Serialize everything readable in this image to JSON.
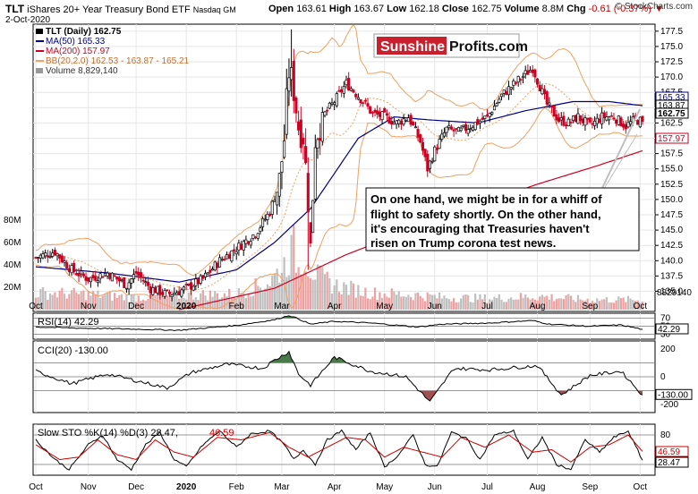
{
  "header": {
    "symbol": "TLT",
    "name": "iShares 20+ Year Treasury Bond ETF",
    "exchange": "Nasdaq GM",
    "date": "2-Oct-2020",
    "open_label": "Open",
    "open": "163.61",
    "high_label": "High",
    "high": "163.67",
    "low_label": "Low",
    "low": "162.18",
    "close_label": "Close",
    "close": "162.75",
    "volume_label": "Volume",
    "volume": "8.8M",
    "chg_label": "Chg",
    "chg": "-0.61 (-0.37%)",
    "copyright": "© StockCharts.com"
  },
  "legend": {
    "price": "TLT (Daily) 162.75",
    "ma50": "MA(50) 165.33",
    "ma200": "MA(200) 157.97",
    "bb": "BB(20,2.0) 162.53 - 163.87 - 165.21",
    "volume": "Volume 8,829,140"
  },
  "logo": {
    "part1": "Sunshine",
    "part2": "Profits.com"
  },
  "annotation": [
    "On one hand, we might be in for a whiff of",
    "flight to safety shortly. On the other hand,",
    "it's encouraging that Treasuries haven't",
    "risen on Trump corona test news."
  ],
  "panels": {
    "rsi": {
      "label": "RSI(14) 42.29",
      "value_tag": "42.29",
      "ticks": [
        "70",
        "50",
        "30"
      ]
    },
    "cci": {
      "label": "CCI(20) -130.00",
      "value_tag": "-130.00",
      "ticks": [
        "200",
        "0",
        "-200"
      ]
    },
    "sto": {
      "label": "Slow STO %K(14) %D(3) 28.47,",
      "label_d": "46.59",
      "value_tags": [
        "46.59",
        "28.47"
      ],
      "ticks": [
        "80",
        "20"
      ]
    }
  },
  "colors": {
    "up": "#000000",
    "down": "#cc0022",
    "ma50": "#000080",
    "ma200": "#cc0022",
    "bb": "#f0a060",
    "volume": "#bfbfbf",
    "volume_red": "#f0a0a0",
    "overbought_fill": "#4a7a4a",
    "oversold_fill": "#a05050",
    "stoch_d": "#cc0000"
  },
  "chart_data": {
    "type": "candlestick",
    "y_axis_price": {
      "ticks": [
        "177.5",
        "175.0",
        "172.5",
        "170.0",
        "167.5",
        "165.0",
        "162.5",
        "160.0",
        "157.5",
        "155.0",
        "152.5",
        "150.0",
        "147.5",
        "145.0",
        "142.5",
        "140.0",
        "137.5",
        "135.0"
      ],
      "range": [
        132,
        178.5
      ]
    },
    "y_axis_volume": {
      "ticks": [
        "80M",
        "60M",
        "40M",
        "20M"
      ]
    },
    "price_tags": [
      {
        "label": "165.33",
        "value": 165.33,
        "color": "#000080",
        "fill": "#ffffff"
      },
      {
        "label": "163.87",
        "value": 163.87,
        "color": "#000000",
        "fill": "#ffffff"
      },
      {
        "label": "162.75",
        "value": 162.75,
        "color": "#000000",
        "fill": "#ffffff"
      },
      {
        "label": "157.97",
        "value": 157.97,
        "color": "#cc0022",
        "fill": "#ffffff"
      }
    ],
    "volume_tag": "8829140",
    "x_labels": [
      "Oct",
      "Nov",
      "Dec",
      "2020",
      "Feb",
      "Mar",
      "Apr",
      "May",
      "Jun",
      "Jul",
      "Aug",
      "Sep",
      "Oct"
    ],
    "x_label_index": [
      0,
      22,
      42,
      63,
      84,
      103,
      125,
      146,
      167,
      189,
      210,
      232,
      253
    ],
    "n_days": 255,
    "close_anchors": [
      [
        0,
        140.5
      ],
      [
        8,
        141.5
      ],
      [
        15,
        138.5
      ],
      [
        22,
        137.0
      ],
      [
        30,
        138.0
      ],
      [
        38,
        136.0
      ],
      [
        42,
        138.0
      ],
      [
        48,
        135.5
      ],
      [
        55,
        134.5
      ],
      [
        60,
        135.0
      ],
      [
        63,
        135.5
      ],
      [
        70,
        137.0
      ],
      [
        77,
        140.0
      ],
      [
        84,
        142.0
      ],
      [
        92,
        144.5
      ],
      [
        98,
        148.0
      ],
      [
        102,
        153.0
      ],
      [
        104,
        160.0
      ],
      [
        106,
        171.0
      ],
      [
        108,
        168.0
      ],
      [
        110,
        162.0
      ],
      [
        112,
        160.5
      ],
      [
        114,
        150.0
      ],
      [
        115,
        142.0
      ],
      [
        117,
        160.0
      ],
      [
        120,
        163.5
      ],
      [
        125,
        166.0
      ],
      [
        130,
        169.0
      ],
      [
        136,
        166.5
      ],
      [
        141,
        164.0
      ],
      [
        146,
        163.5
      ],
      [
        151,
        162.5
      ],
      [
        156,
        163.5
      ],
      [
        161,
        159.5
      ],
      [
        164,
        155.0
      ],
      [
        167,
        158.0
      ],
      [
        172,
        161.5
      ],
      [
        177,
        161.0
      ],
      [
        182,
        162.0
      ],
      [
        189,
        163.5
      ],
      [
        195,
        167.0
      ],
      [
        202,
        169.5
      ],
      [
        208,
        171.5
      ],
      [
        210,
        169.5
      ],
      [
        214,
        165.5
      ],
      [
        219,
        163.0
      ],
      [
        223,
        162.5
      ],
      [
        227,
        163.5
      ],
      [
        232,
        162.0
      ],
      [
        237,
        163.5
      ],
      [
        242,
        163.5
      ],
      [
        247,
        162.0
      ],
      [
        251,
        163.0
      ],
      [
        254,
        162.75
      ]
    ],
    "ma50_anchors": [
      [
        0,
        139.0
      ],
      [
        30,
        138.0
      ],
      [
        60,
        136.5
      ],
      [
        84,
        138.5
      ],
      [
        100,
        143.0
      ],
      [
        115,
        148.5
      ],
      [
        135,
        160.0
      ],
      [
        150,
        163.5
      ],
      [
        165,
        163.0
      ],
      [
        185,
        162.5
      ],
      [
        205,
        164.5
      ],
      [
        225,
        166.0
      ],
      [
        240,
        166.0
      ],
      [
        254,
        165.33
      ]
    ],
    "ma200_anchors": [
      [
        60,
        132.0
      ],
      [
        100,
        135.5
      ],
      [
        130,
        141.0
      ],
      [
        170,
        147.0
      ],
      [
        210,
        152.5
      ],
      [
        235,
        155.5
      ],
      [
        254,
        157.97
      ]
    ],
    "volume_anchors_m": [
      [
        0,
        15
      ],
      [
        20,
        14
      ],
      [
        40,
        11
      ],
      [
        60,
        13
      ],
      [
        84,
        14
      ],
      [
        98,
        25
      ],
      [
        104,
        40
      ],
      [
        108,
        55
      ],
      [
        110,
        36
      ],
      [
        112,
        48
      ],
      [
        115,
        38
      ],
      [
        118,
        30
      ],
      [
        125,
        22
      ],
      [
        140,
        15
      ],
      [
        160,
        13
      ],
      [
        170,
        11
      ],
      [
        190,
        10
      ],
      [
        210,
        12
      ],
      [
        230,
        9
      ],
      [
        254,
        8.8
      ]
    ],
    "rsi_anchors": [
      [
        0,
        48
      ],
      [
        20,
        45
      ],
      [
        40,
        43
      ],
      [
        60,
        40
      ],
      [
        84,
        52
      ],
      [
        100,
        66
      ],
      [
        106,
        77
      ],
      [
        110,
        68
      ],
      [
        115,
        55
      ],
      [
        125,
        62
      ],
      [
        140,
        58
      ],
      [
        160,
        48
      ],
      [
        170,
        55
      ],
      [
        190,
        58
      ],
      [
        208,
        64
      ],
      [
        215,
        55
      ],
      [
        232,
        50
      ],
      [
        245,
        53
      ],
      [
        254,
        42.29
      ]
    ],
    "cci_anchors": [
      [
        0,
        40
      ],
      [
        15,
        -50
      ],
      [
        30,
        20
      ],
      [
        45,
        -40
      ],
      [
        55,
        -80
      ],
      [
        65,
        30
      ],
      [
        80,
        90
      ],
      [
        95,
        60
      ],
      [
        100,
        120
      ],
      [
        106,
        180
      ],
      [
        110,
        20
      ],
      [
        115,
        -60
      ],
      [
        125,
        140
      ],
      [
        140,
        40
      ],
      [
        155,
        0
      ],
      [
        165,
        -180
      ],
      [
        175,
        60
      ],
      [
        190,
        50
      ],
      [
        210,
        80
      ],
      [
        220,
        -130
      ],
      [
        232,
        10
      ],
      [
        245,
        40
      ],
      [
        254,
        -130
      ]
    ],
    "stoch_k_anchors": [
      [
        0,
        70
      ],
      [
        8,
        30
      ],
      [
        14,
        10
      ],
      [
        22,
        60
      ],
      [
        28,
        80
      ],
      [
        34,
        30
      ],
      [
        40,
        10
      ],
      [
        46,
        60
      ],
      [
        52,
        85
      ],
      [
        58,
        30
      ],
      [
        63,
        15
      ],
      [
        70,
        60
      ],
      [
        77,
        88
      ],
      [
        84,
        55
      ],
      [
        90,
        82
      ],
      [
        98,
        88
      ],
      [
        104,
        60
      ],
      [
        108,
        30
      ],
      [
        112,
        50
      ],
      [
        117,
        20
      ],
      [
        122,
        70
      ],
      [
        128,
        88
      ],
      [
        134,
        50
      ],
      [
        140,
        85
      ],
      [
        146,
        15
      ],
      [
        152,
        40
      ],
      [
        158,
        80
      ],
      [
        163,
        20
      ],
      [
        168,
        15
      ],
      [
        174,
        85
      ],
      [
        180,
        75
      ],
      [
        186,
        30
      ],
      [
        192,
        80
      ],
      [
        200,
        88
      ],
      [
        206,
        30
      ],
      [
        212,
        75
      ],
      [
        218,
        20
      ],
      [
        224,
        10
      ],
      [
        230,
        70
      ],
      [
        236,
        45
      ],
      [
        242,
        75
      ],
      [
        248,
        88
      ],
      [
        254,
        28.47
      ]
    ],
    "stoch_d_anchors": [
      [
        0,
        60
      ],
      [
        10,
        30
      ],
      [
        18,
        35
      ],
      [
        26,
        70
      ],
      [
        34,
        40
      ],
      [
        42,
        30
      ],
      [
        50,
        70
      ],
      [
        58,
        45
      ],
      [
        66,
        35
      ],
      [
        76,
        75
      ],
      [
        86,
        70
      ],
      [
        98,
        85
      ],
      [
        106,
        55
      ],
      [
        114,
        35
      ],
      [
        122,
        55
      ],
      [
        130,
        75
      ],
      [
        138,
        70
      ],
      [
        146,
        35
      ],
      [
        154,
        55
      ],
      [
        162,
        45
      ],
      [
        170,
        35
      ],
      [
        178,
        75
      ],
      [
        188,
        55
      ],
      [
        198,
        80
      ],
      [
        208,
        45
      ],
      [
        216,
        50
      ],
      [
        224,
        25
      ],
      [
        232,
        55
      ],
      [
        240,
        60
      ],
      [
        248,
        80
      ],
      [
        254,
        46.59
      ]
    ]
  }
}
